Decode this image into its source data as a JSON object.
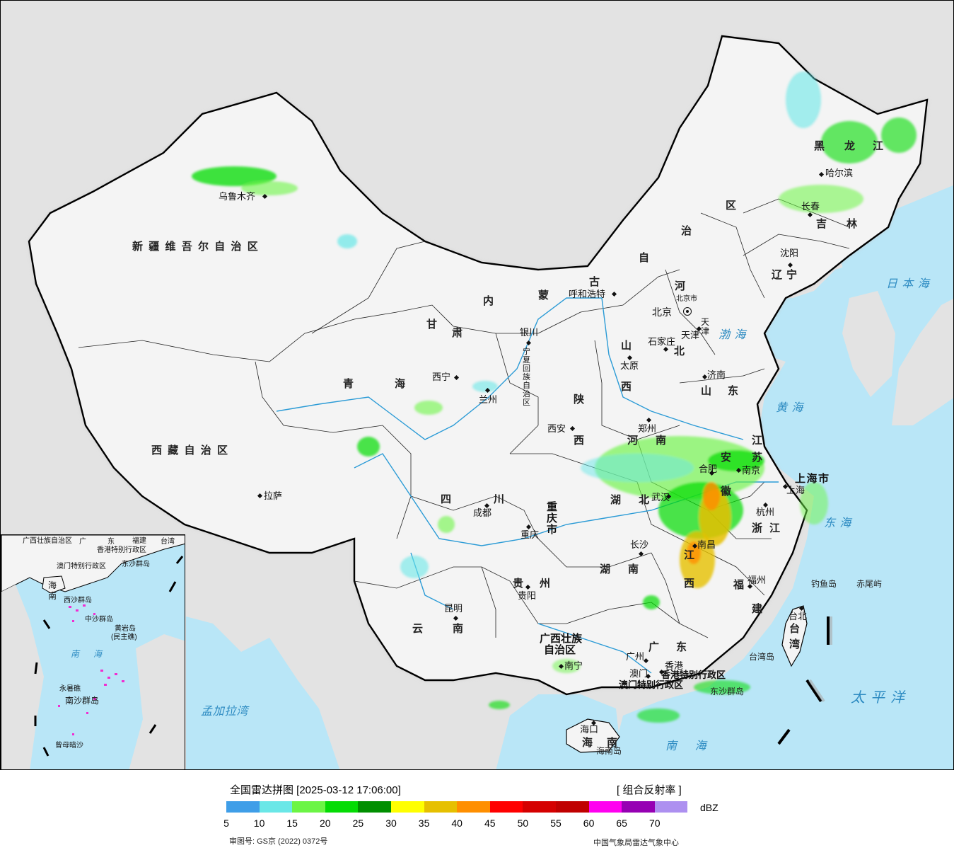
{
  "map": {
    "labels": {
      "provinces": {
        "xinjiang": "新疆维吾尔自治区",
        "xizang": "西藏自治区",
        "qinghai_1": "青",
        "qinghai_2": "海",
        "gansu_1": "甘",
        "gansu_2": "肃",
        "neimenggu_1": "内",
        "neimenggu_2": "蒙",
        "neimenggu_3": "古",
        "neimenggu_4": "自",
        "neimenggu_5": "治",
        "neimenggu_6": "区",
        "heilongjiang_1": "黑",
        "heilongjiang_2": "龙",
        "heilongjiang_3": "江",
        "jilin_1": "吉",
        "jilin_2": "林",
        "liaoning_1": "辽",
        "liaoning_2": "宁",
        "hebei_1": "河",
        "hebei_2": "北",
        "shanxi_1": "山",
        "shanxi_2": "西",
        "shaanxi_1": "陕",
        "shaanxi_2": "西",
        "ningxia": "宁夏回族自治区",
        "shandong_1": "山",
        "shandong_2": "东",
        "henan_1": "河",
        "henan_2": "南",
        "jiangsu_1": "江",
        "jiangsu_2": "苏",
        "anhui_1": "安",
        "anhui_2": "徽",
        "hubei_1": "湖",
        "hubei_2": "北",
        "sichuan_1": "四",
        "sichuan_2": "川",
        "chongqing": "重庆市",
        "guizhou_1": "贵",
        "guizhou_2": "州",
        "hunan_1": "湖",
        "hunan_2": "南",
        "jiangxi_1": "江",
        "jiangxi_2": "西",
        "zhejiang_1": "浙",
        "zhejiang_2": "江",
        "fujian_1": "福",
        "fujian_2": "建",
        "yunnan_1": "云",
        "yunnan_2": "南",
        "guangxi_1": "广西壮族",
        "guangxi_2": "自治区",
        "guangdong_1": "广",
        "guangdong_2": "东",
        "hainan_1": "海",
        "hainan_2": "南",
        "taiwan_1": "台",
        "taiwan_2": "湾",
        "shanghai": "上海市",
        "tianjin": "天津",
        "beijing_shi": "北京市",
        "hongkong_sar": "香港特别行政区",
        "macau_sar": "澳门特别行政区"
      },
      "cities": {
        "urumqi": "乌鲁木齐",
        "lhasa": "拉萨",
        "xining": "西宁",
        "lanzhou": "兰州",
        "yinchuan": "银川",
        "hohhot": "呼和浩特",
        "beijing": "北京",
        "tianjin": "天津",
        "shijiazhuang": "石家庄",
        "taiyuan": "太原",
        "jinan": "济南",
        "zhengzhou": "郑州",
        "xian": "西安",
        "hefei": "合肥",
        "nanjing": "南京",
        "shanghai": "上海",
        "hangzhou": "杭州",
        "wuhan": "武汉",
        "chengdu": "成都",
        "chongqing": "重庆",
        "changsha": "长沙",
        "nanchang": "南昌",
        "guiyang": "贵阳",
        "kunming": "昆明",
        "fuzhou": "福州",
        "taipei": "台北",
        "guangzhou": "广州",
        "nanning": "南宁",
        "haikou": "海口",
        "xianggang": "香港",
        "aomen": "澳门",
        "harbin": "哈尔滨",
        "changchun": "长春",
        "shenyang": "沈阳"
      },
      "seas": {
        "bohai": "渤海",
        "huanghai": "黄海",
        "donghai": "东海",
        "nanhai": "南海",
        "taipingyang": "太平洋",
        "ribenhai": "日本海",
        "mengjialawan": "孟加拉湾"
      },
      "islands": {
        "diaoyudao": "钓鱼岛",
        "chiweiyu": "赤尾屿",
        "taiwandao": "台湾岛",
        "dongshaqundao": "东沙群岛",
        "hainandao": "海南岛"
      }
    },
    "inset": {
      "guangdong_1": "广",
      "guangdong_2": "东",
      "hongkong_sar": "香港特别行政区",
      "macau_sar": "澳门特别行政区",
      "guangxi": "广西壮族自治区",
      "hainan_1": "海",
      "hainan_2": "南",
      "taiwan": "台湾",
      "fujian": "福建",
      "dongshaqundao": "东沙群岛",
      "xishaqundao": "西沙群岛",
      "zhongshaqundao": "中沙群岛",
      "huangyandao": "黄岩岛",
      "minzhujiao": "(民主礁)",
      "nansha": "南沙群岛",
      "yongshujiao": "永暑礁",
      "zengmuansha": "曾母暗沙",
      "nanhai_1": "南",
      "nanhai_2": "海"
    },
    "colors": {
      "land": "#f2f2f2",
      "outside_land": "#e3e3e3",
      "sea": "#b9e6f7",
      "river": "#2b9bd6",
      "border": "#000000"
    }
  },
  "legend": {
    "title": "全国雷达拼图 [2025-03-12 17:06:00]",
    "product": "[ 组合反射率 ]",
    "unit": "dBZ",
    "color_scale": [
      {
        "color": "#3f9ee8"
      },
      {
        "color": "#6ae7e7"
      },
      {
        "color": "#6cf545"
      },
      {
        "color": "#04dc04"
      },
      {
        "color": "#008f00"
      },
      {
        "color": "#ffff00"
      },
      {
        "color": "#e6c000"
      },
      {
        "color": "#ff8f00"
      },
      {
        "color": "#ff0000"
      },
      {
        "color": "#d50000"
      },
      {
        "color": "#c00000"
      },
      {
        "color": "#ff00f0"
      },
      {
        "color": "#9600b3"
      },
      {
        "color": "#ad90f0"
      }
    ],
    "ticks": [
      "5",
      "10",
      "15",
      "20",
      "25",
      "30",
      "35",
      "40",
      "45",
      "50",
      "55",
      "60",
      "65",
      "70"
    ],
    "approval": "审图号: GS京 (2022) 0372号",
    "credit": "中国气象局雷达气象中心"
  }
}
